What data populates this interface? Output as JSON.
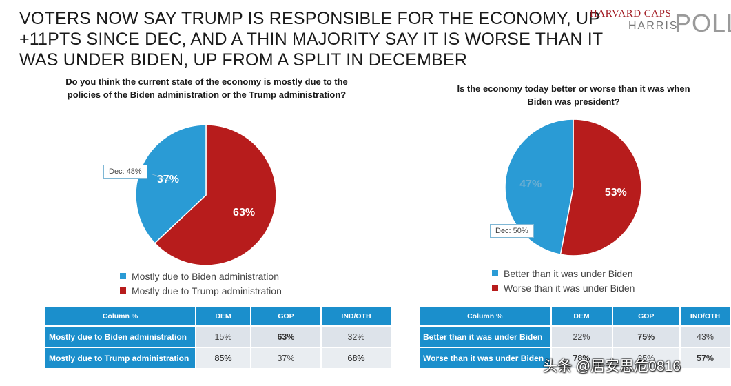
{
  "headline": [
    "VOTERS NOW SAY TRUMP IS RESPONSIBLE FOR THE ECONOMY, UP",
    "+11PTS SINCE DEC, AND A THIN MAJORITY SAY IT IS WORSE THAN IT",
    "WAS UNDER BIDEN, UP FROM A SPLIT IN DECEMBER"
  ],
  "logo": {
    "line1": "HARVARD CAPS",
    "line2": "HARRIS",
    "big": "POLL"
  },
  "colors": {
    "blue": "#2a9bd5",
    "red": "#b71c1c",
    "header_blue": "#1b8fcc"
  },
  "chart_data": [
    {
      "type": "pie",
      "title": "Do you think the current state of the economy is mostly due to the policies of the Biden administration or the Trump administration?",
      "labels": [
        "Mostly due to Biden administration",
        "Mostly due to Trump administration"
      ],
      "values": [
        37,
        63
      ],
      "value_labels": [
        "37%",
        "63%"
      ],
      "colors": [
        "#2a9bd5",
        "#b71c1c"
      ],
      "callout": "Dec: 48%",
      "table": {
        "headers": [
          "Column %",
          "DEM",
          "GOP",
          "IND/OTH"
        ],
        "rows": [
          {
            "label": "Mostly due to Biden administration",
            "values": [
              "15%",
              "63%",
              "32%"
            ],
            "bold": [
              false,
              true,
              false
            ]
          },
          {
            "label": "Mostly due to Trump administration",
            "values": [
              "85%",
              "37%",
              "68%"
            ],
            "bold": [
              true,
              false,
              true
            ]
          }
        ]
      }
    },
    {
      "type": "pie",
      "title": "Is the economy today better or worse than it was when Biden was president?",
      "labels": [
        "Better than it was under Biden",
        "Worse than it was under Biden"
      ],
      "values": [
        47,
        53
      ],
      "value_labels": [
        "47%",
        "53%"
      ],
      "colors": [
        "#2a9bd5",
        "#b71c1c"
      ],
      "callout": "Dec: 50%",
      "table": {
        "headers": [
          "Column %",
          "DEM",
          "GOP",
          "IND/OTH"
        ],
        "rows": [
          {
            "label": "Better than it was under Biden",
            "values": [
              "22%",
              "75%",
              "43%"
            ],
            "bold": [
              false,
              true,
              false
            ]
          },
          {
            "label": "Worse than it was under Biden",
            "values": [
              "78%",
              "25%",
              "57%"
            ],
            "bold": [
              true,
              false,
              true
            ]
          }
        ]
      }
    }
  ],
  "watermark": "头条 @居安思危0816"
}
